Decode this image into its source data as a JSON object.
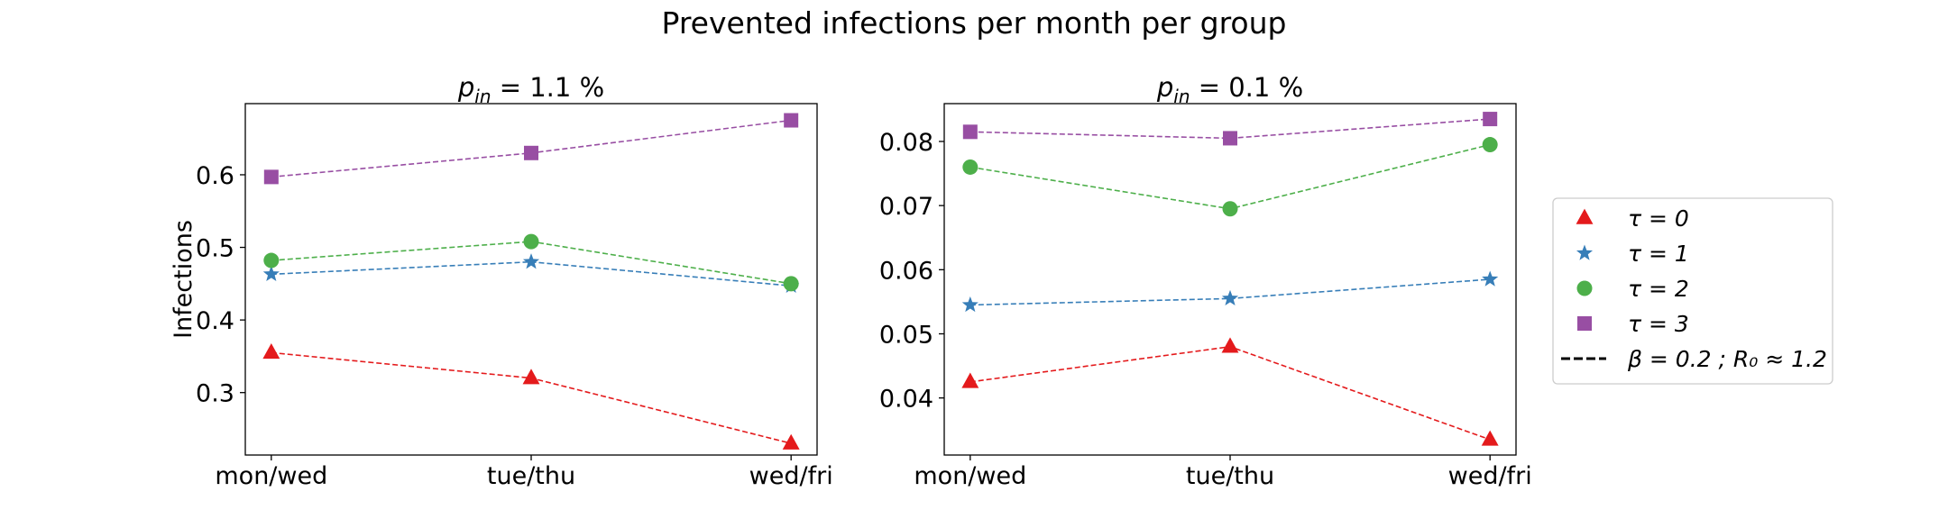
{
  "figure_title": "Prevented infections per month per group",
  "colors": {
    "tau0": "#e41a1c",
    "tau1": "#377eb8",
    "tau2": "#4daf4a",
    "tau3": "#984ea3",
    "axis": "#000000"
  },
  "legend": {
    "placement": "right",
    "entries": [
      {
        "key": "tau0",
        "text": "τ = 0",
        "marker": "triangle"
      },
      {
        "key": "tau1",
        "text": "τ = 1",
        "marker": "star"
      },
      {
        "key": "tau2",
        "text": "τ = 2",
        "marker": "circle"
      },
      {
        "key": "tau3",
        "text": "τ = 3",
        "marker": "square"
      },
      {
        "key": "line",
        "text": "β = 0.2 ; R₀ ≈ 1.2",
        "marker": "dashed-line"
      }
    ]
  },
  "chart_data": [
    {
      "type": "line",
      "title": "p_in = 1.1 %",
      "title_parts": {
        "symbol": "p",
        "subscript": "in",
        "rest": " = 1.1 %"
      },
      "ylabel": "Infections",
      "categories": [
        "mon/wed",
        "tue/thu",
        "wed/fri"
      ],
      "yticks": [
        "0.3",
        "0.4",
        "0.5",
        "0.6"
      ],
      "ylim": [
        0.214,
        0.698
      ],
      "grid": false,
      "series": [
        {
          "name": "τ = 0",
          "key": "tau0",
          "marker": "triangle",
          "values": [
            0.355,
            0.32,
            0.23
          ]
        },
        {
          "name": "τ = 1",
          "key": "tau1",
          "marker": "star",
          "values": [
            0.463,
            0.48,
            0.447
          ]
        },
        {
          "name": "τ = 2",
          "key": "tau2",
          "marker": "circle",
          "values": [
            0.482,
            0.508,
            0.45
          ]
        },
        {
          "name": "τ = 3",
          "key": "tau3",
          "marker": "square",
          "values": [
            0.597,
            0.63,
            0.675
          ]
        }
      ]
    },
    {
      "type": "line",
      "title": "p_in = 0.1 %",
      "title_parts": {
        "symbol": "p",
        "subscript": "in",
        "rest": " = 0.1 %"
      },
      "ylabel": "",
      "categories": [
        "mon/wed",
        "tue/thu",
        "wed/fri"
      ],
      "yticks": [
        "0.04",
        "0.05",
        "0.06",
        "0.07",
        "0.08"
      ],
      "ylim": [
        0.0311,
        0.0859
      ],
      "grid": false,
      "series": [
        {
          "name": "τ = 0",
          "key": "tau0",
          "marker": "triangle",
          "values": [
            0.0425,
            0.048,
            0.0335
          ]
        },
        {
          "name": "τ = 1",
          "key": "tau1",
          "marker": "star",
          "values": [
            0.0545,
            0.0555,
            0.0585
          ]
        },
        {
          "name": "τ = 2",
          "key": "tau2",
          "marker": "circle",
          "values": [
            0.076,
            0.0695,
            0.0795
          ]
        },
        {
          "name": "τ = 3",
          "key": "tau3",
          "marker": "square",
          "values": [
            0.0815,
            0.0805,
            0.0835
          ]
        }
      ]
    }
  ]
}
